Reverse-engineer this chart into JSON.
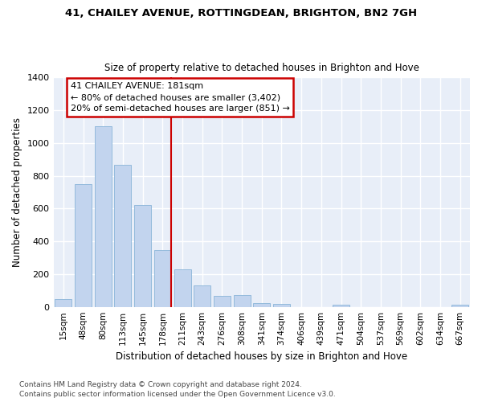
{
  "title1": "41, CHAILEY AVENUE, ROTTINGDEAN, BRIGHTON, BN2 7GH",
  "title2": "Size of property relative to detached houses in Brighton and Hove",
  "xlabel": "Distribution of detached houses by size in Brighton and Hove",
  "ylabel": "Number of detached properties",
  "footnote1": "Contains HM Land Registry data © Crown copyright and database right 2024.",
  "footnote2": "Contains public sector information licensed under the Open Government Licence v3.0.",
  "bar_labels": [
    "15sqm",
    "48sqm",
    "80sqm",
    "113sqm",
    "145sqm",
    "178sqm",
    "211sqm",
    "243sqm",
    "276sqm",
    "308sqm",
    "341sqm",
    "374sqm",
    "406sqm",
    "439sqm",
    "471sqm",
    "504sqm",
    "537sqm",
    "569sqm",
    "602sqm",
    "634sqm",
    "667sqm"
  ],
  "bar_values": [
    48,
    750,
    1100,
    865,
    620,
    345,
    230,
    130,
    65,
    70,
    25,
    20,
    0,
    0,
    12,
    0,
    0,
    0,
    0,
    0,
    15
  ],
  "bar_color": "#c2d4ee",
  "bar_edgecolor": "#89b4d8",
  "bg_color": "#e8eef8",
  "grid_color": "#ffffff",
  "vline_color": "#cc0000",
  "vline_bar_index": 5,
  "annotation_line1": "41 CHAILEY AVENUE: 181sqm",
  "annotation_line2": "← 80% of detached houses are smaller (3,402)",
  "annotation_line3": "20% of semi-detached houses are larger (851) →",
  "ylim_max": 1400,
  "yticks": [
    0,
    200,
    400,
    600,
    800,
    1000,
    1200,
    1400
  ]
}
